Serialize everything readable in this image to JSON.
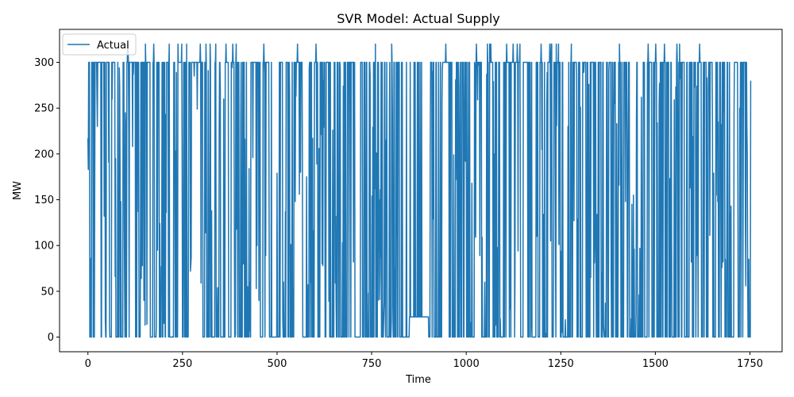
{
  "chart_data": {
    "type": "line",
    "title": "SVR Model: Actual Supply",
    "xlabel": "Time",
    "ylabel": "MW",
    "xlim": [
      -75,
      1835
    ],
    "ylim": [
      -16,
      336
    ],
    "xticks": [
      0,
      250,
      500,
      750,
      1000,
      1250,
      1500,
      1750
    ],
    "yticks": [
      0,
      50,
      100,
      150,
      200,
      250,
      300
    ],
    "grid": false,
    "legend_position": "upper-left",
    "series": [
      {
        "name": "Actual",
        "color": "#1f77b4",
        "n_points": 1753,
        "x_start": 0,
        "x_end": 1752,
        "first_value": 217,
        "last_value": 280,
        "min": 0,
        "max": 320,
        "typical_high": 300,
        "typical_low": 0,
        "sparse_region": [
          850,
          900
        ],
        "sparse_region_level": 22
      }
    ]
  }
}
